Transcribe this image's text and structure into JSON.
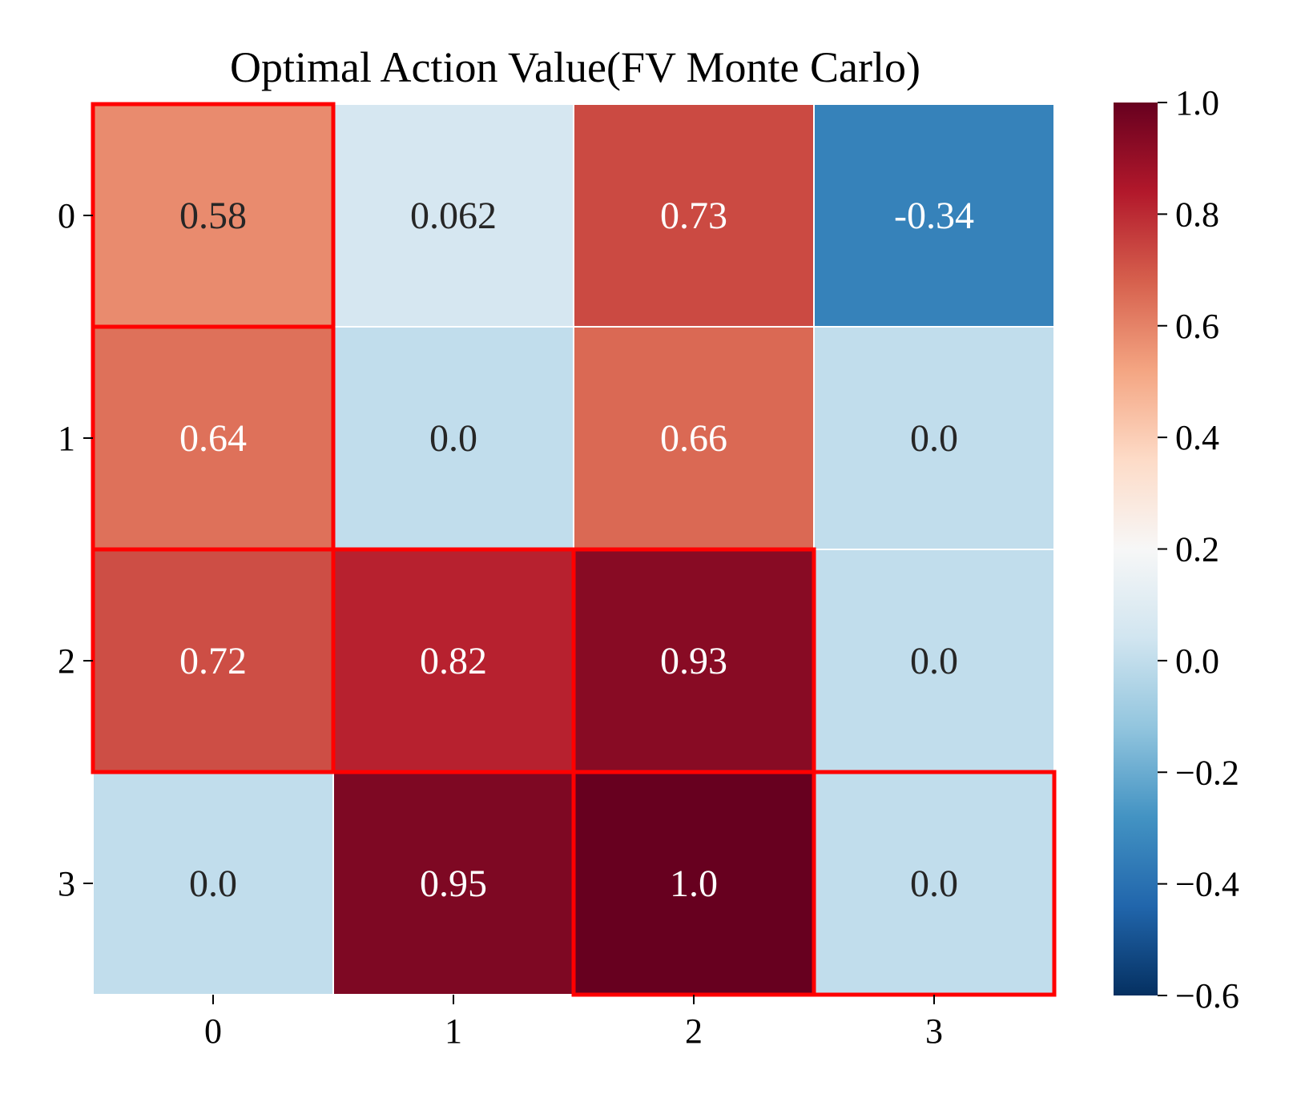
{
  "chart_data": {
    "type": "heatmap",
    "title": "Optimal Action Value(FV Monte Carlo)",
    "xlabel": "",
    "ylabel": "",
    "x_categories": [
      "0",
      "1",
      "2",
      "3"
    ],
    "y_categories": [
      "0",
      "1",
      "2",
      "3"
    ],
    "values": [
      [
        0.58,
        0.062,
        0.73,
        -0.34
      ],
      [
        0.64,
        0.0,
        0.66,
        0.0
      ],
      [
        0.72,
        0.82,
        0.93,
        0.0
      ],
      [
        0.0,
        0.95,
        1.0,
        0.0
      ]
    ],
    "cell_labels": [
      [
        "0.58",
        "0.062",
        "0.73",
        "-0.34"
      ],
      [
        "0.64",
        "0.0",
        "0.66",
        "0.0"
      ],
      [
        "0.72",
        "0.82",
        "0.93",
        "0.0"
      ],
      [
        "0.0",
        "0.95",
        "1.0",
        "0.0"
      ]
    ],
    "highlighted_cells": [
      [
        0,
        0
      ],
      [
        1,
        0
      ],
      [
        2,
        0
      ],
      [
        2,
        1
      ],
      [
        2,
        2
      ],
      [
        3,
        2
      ],
      [
        3,
        3
      ]
    ],
    "highlight_color": "#ff0000",
    "colormap": "RdBu_r",
    "colorbar": {
      "vmin": -0.6,
      "vmax": 1.0,
      "ticks": [
        1.0,
        0.8,
        0.6,
        0.4,
        0.2,
        0.0,
        -0.2,
        -0.4,
        -0.6
      ],
      "tick_labels": [
        "1.0",
        "0.8",
        "0.6",
        "0.4",
        "0.2",
        "0.0",
        "−0.2",
        "−0.4",
        "−0.6"
      ]
    },
    "colorbar_colors": [
      "#053061",
      "#2166ac",
      "#4393c3",
      "#92c5de",
      "#d1e5f0",
      "#f7f7f7",
      "#fddbc7",
      "#f4a582",
      "#d6604d",
      "#b2182b",
      "#67001f"
    ],
    "grid": false,
    "legend": "none"
  }
}
